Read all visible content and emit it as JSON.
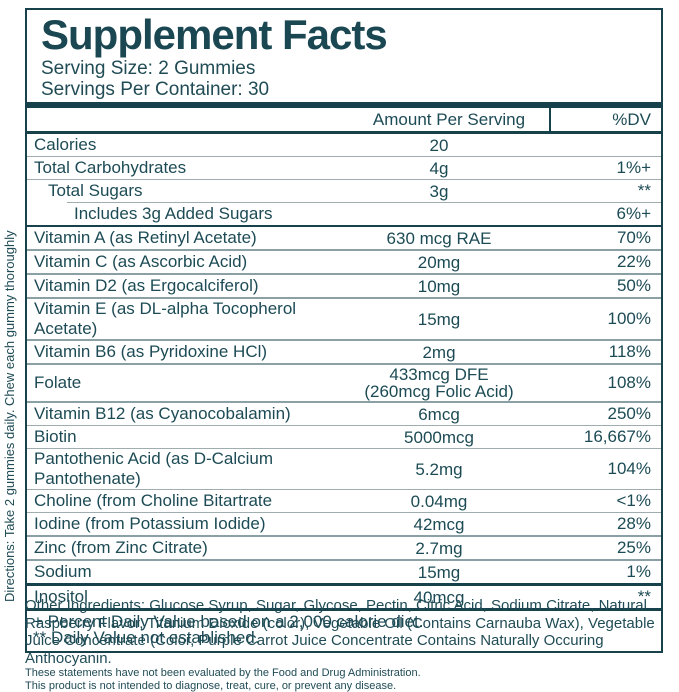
{
  "label": {
    "title": "Supplement Facts",
    "serving_size": "Serving Size: 2 Gummies",
    "servings_per_container": "Servings Per Container: 30",
    "header": {
      "amount": "Amount Per Serving",
      "dv": "%DV"
    },
    "rows": [
      {
        "name": "Calories",
        "amount": "20",
        "dv": "",
        "indent": 0,
        "sep": "none"
      },
      {
        "name": "Total Carbohydrates",
        "amount": "4g",
        "dv": "1%+",
        "indent": 0,
        "sep": "thin"
      },
      {
        "name": "Total Sugars",
        "amount": "3g",
        "dv": "**",
        "indent": 1,
        "sep": "thin"
      },
      {
        "name": "Includes 3g Added Sugars",
        "amount": "",
        "dv": "6%+",
        "indent": 2,
        "sep": "thin-indent"
      },
      {
        "name": "Vitamin A (as Retinyl Acetate)",
        "amount": "630 mcg RAE",
        "dv": "70%",
        "indent": 0,
        "sep": "dark2"
      },
      {
        "name": "Vitamin C (as Ascorbic Acid)",
        "amount": "20mg",
        "dv": "22%",
        "indent": 0,
        "sep": "med"
      },
      {
        "name": "Vitamin D2 (as Ergocalciferol)",
        "amount": "10mg",
        "dv": "50%",
        "indent": 0,
        "sep": "med"
      },
      {
        "name": "Vitamin E (as DL-alpha Tocopherol Acetate)",
        "amount": "15mg",
        "dv": "100%",
        "indent": 0,
        "sep": "med"
      },
      {
        "name": "Vitamin B6 (as Pyridoxine HCl)",
        "amount": "2mg",
        "dv": "118%",
        "indent": 0,
        "sep": "med"
      },
      {
        "name": "Folate",
        "amount": "433mcg DFE",
        "amount2": "(260mcg Folic Acid)",
        "dv": "108%",
        "indent": 0,
        "sep": "med"
      },
      {
        "name": "Vitamin B12 (as Cyanocobalamin)",
        "amount": "6mcg",
        "dv": "250%",
        "indent": 0,
        "sep": "med"
      },
      {
        "name": "Biotin",
        "amount": "5000mcg",
        "dv": "16,667%",
        "indent": 0,
        "sep": "thin"
      },
      {
        "name": "Pantothenic Acid (as D-Calcium Pantothenate)",
        "amount": "5.2mg",
        "dv": "104%",
        "indent": 0,
        "sep": "thin"
      },
      {
        "name": "Choline (from Choline Bitartrate",
        "amount": "0.04mg",
        "dv": "<1%",
        "indent": 0,
        "sep": "thin"
      },
      {
        "name": "Iodine (from Potassium Iodide)",
        "amount": "42mcg",
        "dv": "28%",
        "indent": 0,
        "sep": "thin"
      },
      {
        "name": "Zinc (from Zinc Citrate)",
        "amount": "2.7mg",
        "dv": "25%",
        "indent": 0,
        "sep": "med"
      },
      {
        "name": "Sodium",
        "amount": "15mg",
        "dv": "1%",
        "indent": 0,
        "sep": "med"
      },
      {
        "name": "Inositol",
        "amount": "40mcg",
        "dv": "**",
        "indent": 0,
        "sep": "dark3"
      }
    ],
    "footnotes": [
      "+ Percent Daily Value based on a 2,000 calorie diet.",
      "** Daily Value not established."
    ],
    "directions": "Directions: Take 2 gummies daily. Chew each gummy thoroughly",
    "other_ingredients": "Other Ingredients: Glucose Syrup, Sugar, Glycose, Pectin, Citric Acid, Sodium Citrate, Natural Raspberry Flavor, Titanium Dioxide (color), Vegetable Oil (Contains Carnauba Wax), Vegetable Juice Concentrate (Color, Purple Carrot Juice Concentrate Contains Naturally Occuring Anthocyanin.",
    "disclaimers": [
      "These statements have not been evaluated by the Food and Drug Administration.",
      "This product is not intended to diagnose, treat, cure, or prevent any disease."
    ]
  },
  "colors": {
    "ink": "#17414b",
    "text": "#204c56",
    "divider_light": "#9fadaf",
    "divider_medium": "#8ba0a5",
    "background": "#ffffff"
  }
}
